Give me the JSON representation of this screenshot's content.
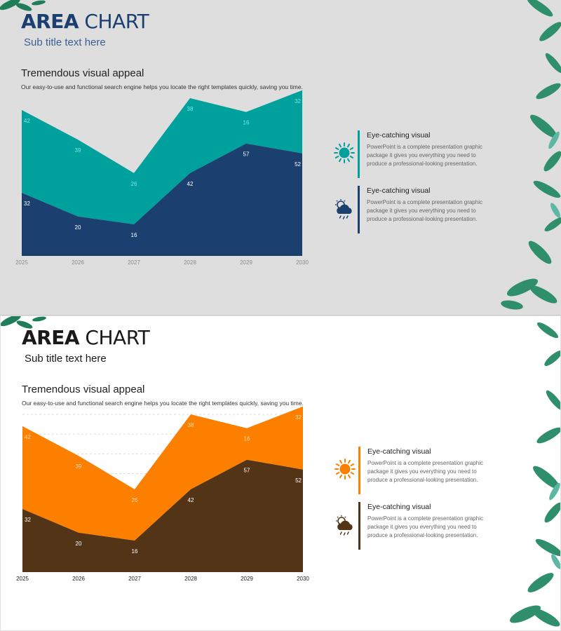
{
  "slides": [
    {
      "title_bold": "AREA",
      "title_rest": " CHART",
      "subtitle": "Sub title text here",
      "heading": "Tremendous visual appeal",
      "description": "Our easy-to-use and functional search engine helps you locate the right templates quickly, saving you time.",
      "colors": {
        "back": "#00a09d",
        "front": "#1b3f6e",
        "back_label": "#7fe6e2",
        "front_label": "#ffffff",
        "tick": "#8a8a8a"
      },
      "gridlines": false,
      "features": [
        {
          "title": "Eye-catching visual",
          "text": "PowerPoint is a complete presentation graphic package it gives you everything you need to produce a professional-looking presentation.",
          "icon": "sun-icon",
          "color": "#00a09d"
        },
        {
          "title": "Eye-catching visual",
          "text": "PowerPoint is a complete presentation graphic package it gives you everything you need to produce a professional-looking presentation.",
          "icon": "cloud-rain-sun-icon",
          "color": "#1b3f6e"
        }
      ]
    },
    {
      "title_bold": "AREA",
      "title_rest": " CHART",
      "subtitle": "Sub title text here",
      "heading": "Tremendous visual appeal",
      "description": "Our easy-to-use and functional search engine helps you locate the right templates quickly, saving you time.",
      "colors": {
        "back": "#fd7f00",
        "front": "#543416",
        "back_label": "#ffd9a8",
        "front_label": "#ffffff",
        "tick": "#222222"
      },
      "gridlines": true,
      "features": [
        {
          "title": "Eye-catching visual",
          "text": "PowerPoint is a complete presentation graphic package it gives you everything you need to produce a professional-looking presentation.",
          "icon": "sun-icon",
          "color": "#fd7f00"
        },
        {
          "title": "Eye-catching visual",
          "text": "PowerPoint is a complete presentation graphic package it gives you everything you need to produce a professional-looking presentation.",
          "icon": "cloud-rain-sun-icon",
          "color": "#543416"
        }
      ]
    }
  ],
  "chart_data": [
    {
      "type": "area",
      "stacked": true,
      "categories": [
        "2025",
        "2026",
        "2027",
        "2028",
        "2029",
        "2030"
      ],
      "series": [
        {
          "values": [
            32,
            20,
            16,
            42,
            57,
            52
          ]
        },
        {
          "values": [
            42,
            39,
            26,
            38,
            16,
            32
          ]
        }
      ],
      "ylim": [
        0,
        80
      ],
      "grid": false,
      "legend": "none"
    },
    {
      "type": "area",
      "stacked": true,
      "categories": [
        "2025",
        "2026",
        "2027",
        "2028",
        "2029",
        "2030"
      ],
      "series": [
        {
          "values": [
            32,
            20,
            16,
            42,
            57,
            52
          ]
        },
        {
          "values": [
            42,
            39,
            26,
            38,
            16,
            32
          ]
        }
      ],
      "ylim": [
        0,
        80
      ],
      "grid": true,
      "legend": "none"
    }
  ]
}
